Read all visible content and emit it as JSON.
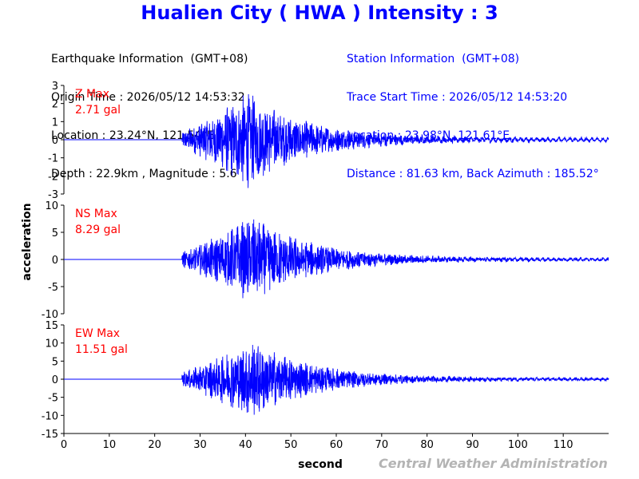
{
  "title": "Hualien City ( HWA ) Intensity : 3",
  "earthquake": {
    "header": "Earthquake Information  (GMT+08)",
    "origin_time": "Origin Time : 2026/05/12 14:53:32",
    "location": "Location : 23.24°N, 121.54°E",
    "depth_magnitude": "Depth : 22.9km , Magnitude : 5.6"
  },
  "station": {
    "header": "Station Information  (GMT+08)",
    "trace_start": "Trace Start Time : 2026/05/12 14:53:20",
    "location": "Location : 23.98°N, 121.61°E",
    "distance": "Distance : 81.63 km, Back Azimuth : 185.52°"
  },
  "xlabel": "second",
  "ylabel": "acceleration",
  "credit": "Central Weather Administration",
  "colors": {
    "trace": "#0000ff",
    "max_label": "#ff0000",
    "title": "#0000ff",
    "credit": "#b4b4b4"
  },
  "chart_data": [
    {
      "type": "line",
      "component": "Z",
      "max_label": "Z Max",
      "max_value": "2.71 gal",
      "peak": 2.71,
      "ylim": [
        -3,
        3
      ],
      "yticks": [
        -3,
        -2,
        -1,
        0,
        1,
        2,
        3
      ],
      "xlim": [
        0,
        120
      ],
      "onset_s": 26,
      "peak_time_s": 40.5,
      "coda_level": 0.12
    },
    {
      "type": "line",
      "component": "NS",
      "max_label": "NS Max",
      "max_value": "8.29 gal",
      "peak": 8.29,
      "ylim": [
        -10,
        10
      ],
      "yticks": [
        -10,
        -5,
        0,
        5,
        10
      ],
      "xlim": [
        0,
        120
      ],
      "onset_s": 26,
      "peak_time_s": 41.5,
      "coda_level": 0.25
    },
    {
      "type": "line",
      "component": "EW",
      "max_label": "EW Max",
      "max_value": "11.51 gal",
      "peak": 11.51,
      "ylim": [
        -15,
        15
      ],
      "yticks": [
        -15,
        -10,
        -5,
        0,
        5,
        10,
        15
      ],
      "xlim": [
        0,
        120
      ],
      "onset_s": 26,
      "peak_time_s": 41.5,
      "coda_level": 0.3
    }
  ],
  "xticks": [
    0,
    10,
    20,
    30,
    40,
    50,
    60,
    70,
    80,
    90,
    100,
    110
  ]
}
